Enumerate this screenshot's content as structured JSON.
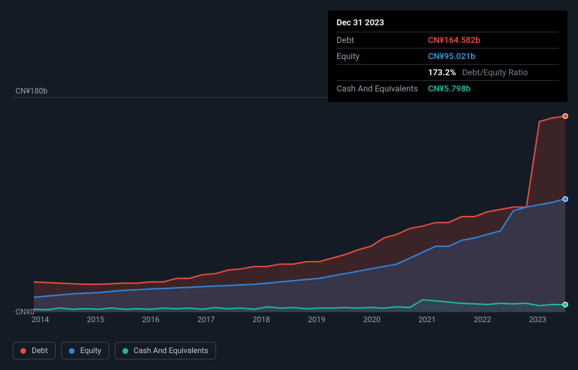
{
  "chart": {
    "type": "area",
    "background_color": "#151b24",
    "grid_color": "#2f3640",
    "y_axis": {
      "max_label": "CN¥180b",
      "min_label": "CN¥0",
      "ylim": [
        0,
        180
      ]
    },
    "x_axis": {
      "labels": [
        "2014",
        "2015",
        "2016",
        "2017",
        "2018",
        "2019",
        "2020",
        "2021",
        "2022",
        "2023"
      ]
    },
    "series": {
      "debt": {
        "label": "Debt",
        "color": "#e74c3c",
        "fill": "rgba(231,76,60,0.18)",
        "values": [
          25,
          24.5,
          24,
          23.5,
          23,
          23,
          23.5,
          24,
          24,
          25,
          25,
          28,
          28,
          31,
          32,
          35,
          36,
          38,
          38,
          40,
          40,
          42,
          42,
          45,
          48,
          52,
          55,
          62,
          65,
          70,
          72,
          75,
          75,
          80,
          80,
          84,
          86,
          88,
          88,
          160,
          163,
          164.582
        ],
        "end_marker": true
      },
      "equity": {
        "label": "Equity",
        "color": "#2e86de",
        "fill": "rgba(46,134,222,0.18)",
        "values": [
          12,
          13,
          14,
          15,
          15.5,
          16,
          17,
          18,
          18.5,
          19,
          19.5,
          20,
          20.5,
          21,
          21.5,
          22,
          22.5,
          23,
          24,
          25,
          26,
          27,
          28,
          30,
          32,
          34,
          36,
          38,
          40,
          45,
          50,
          55,
          55,
          60,
          62,
          65,
          68,
          85,
          88,
          90,
          92,
          95.021
        ],
        "end_marker": true
      },
      "cash": {
        "label": "Cash And Equivalents",
        "color": "#1abc9c",
        "fill": "rgba(26,188,156,0.10)",
        "values": [
          2,
          1.5,
          3,
          2,
          2.5,
          2,
          3,
          2,
          2.5,
          2,
          3,
          2.5,
          3,
          2,
          3.5,
          2.5,
          3,
          2,
          4,
          3,
          3.5,
          2.5,
          3,
          3,
          3.5,
          3,
          3.5,
          3,
          4,
          3.5,
          10,
          9,
          8,
          7,
          6.5,
          6,
          7,
          6.5,
          7,
          5,
          6,
          5.798
        ],
        "end_marker": true
      }
    }
  },
  "tooltip": {
    "date": "Dec 31 2023",
    "rows": [
      {
        "label": "Debt",
        "value": "CN¥164.582b",
        "value_class": "val-debt"
      },
      {
        "label": "Equity",
        "value": "CN¥95.021b",
        "value_class": "val-equity"
      },
      {
        "label": "",
        "value": "173.2%",
        "value_class": "val-ratio",
        "extra": "Debt/Equity Ratio"
      },
      {
        "label": "Cash And Equivalents",
        "value": "CN¥5.798b",
        "value_class": "val-cash"
      }
    ]
  },
  "legend": [
    {
      "label": "Debt",
      "color": "#e74c3c"
    },
    {
      "label": "Equity",
      "color": "#2e86de"
    },
    {
      "label": "Cash And Equivalents",
      "color": "#1abc9c"
    }
  ]
}
